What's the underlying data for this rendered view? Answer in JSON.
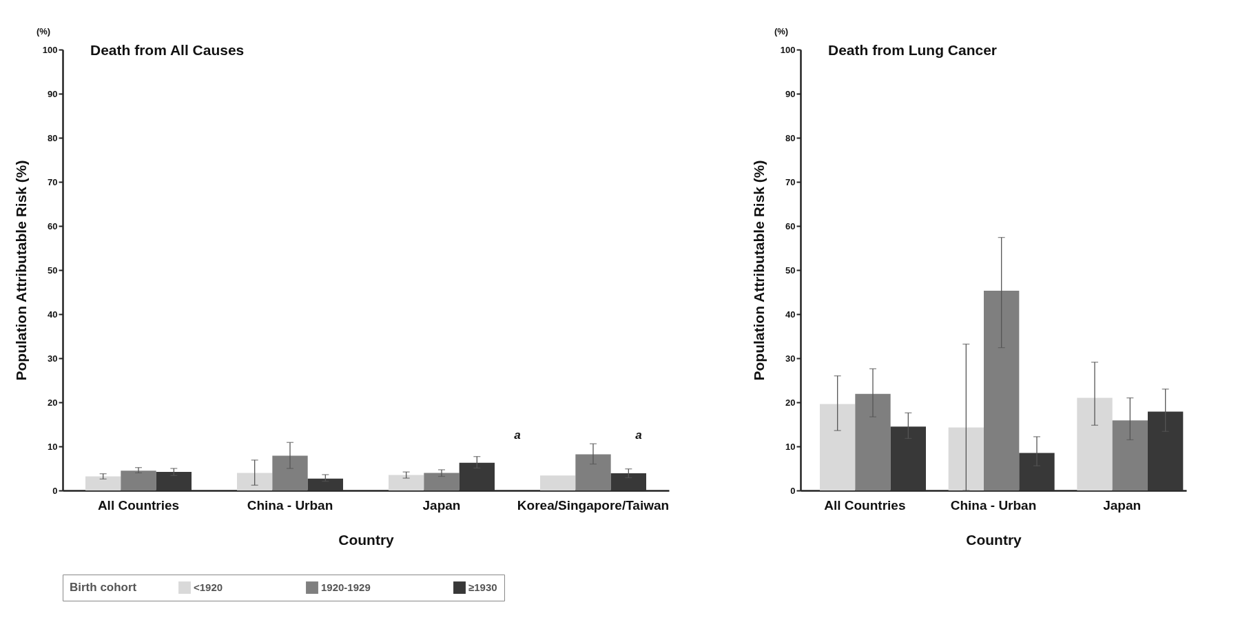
{
  "chart_data": [
    {
      "type": "bar",
      "title": "Death from All Causes",
      "xlabel": "Country",
      "ylabel": "Population Attributable Risk (%)",
      "categories": [
        "All Countries",
        "China - Urban",
        "Japan",
        "Korea/Singapore/Taiwan"
      ],
      "series": [
        {
          "name": "<1920",
          "color": "#d9d9d9",
          "values": [
            3.2,
            4.0,
            3.5,
            3.4
          ],
          "errors": [
            [
              2.6,
              3.8
            ],
            [
              1.2,
              6.9
            ],
            [
              2.8,
              4.2
            ],
            null
          ]
        },
        {
          "name": "1920-1929",
          "color": "#7f7f7f",
          "values": [
            4.5,
            7.9,
            4.0,
            8.2
          ],
          "errors": [
            [
              4.0,
              5.2
            ],
            [
              5.0,
              10.9
            ],
            [
              3.2,
              4.7
            ],
            [
              6.0,
              10.6
            ]
          ]
        },
        {
          "name": "≥1930",
          "color": "#383838",
          "values": [
            4.2,
            2.7,
            6.3,
            3.9
          ],
          "errors": [
            [
              3.4,
              5.0
            ],
            [
              2.1,
              3.6
            ],
            [
              5.1,
              7.7
            ],
            [
              2.9,
              4.9
            ]
          ]
        }
      ],
      "ylim": [
        0,
        100
      ],
      "yticks": [
        0,
        10,
        20,
        30,
        40,
        50,
        60,
        70,
        80,
        90,
        100
      ],
      "legend": "bottom",
      "legend_title": "Birth cohort",
      "annotations": [
        "(%)",
        "a",
        "a"
      ]
    },
    {
      "type": "bar",
      "title": "Death from Lung Cancer",
      "xlabel": "Country",
      "ylabel": "Population Attributable Risk (%)",
      "categories": [
        "All Countries",
        "China - Urban",
        "Japan"
      ],
      "series": [
        {
          "name": "<1920",
          "color": "#d9d9d9",
          "values": [
            19.6,
            14.3,
            21.0
          ],
          "errors": [
            [
              13.6,
              26.0
            ],
            [
              0,
              33.2
            ],
            [
              14.8,
              29.1
            ]
          ]
        },
        {
          "name": "1920-1929",
          "color": "#7f7f7f",
          "values": [
            21.9,
            45.3,
            15.9
          ],
          "errors": [
            [
              16.7,
              27.6
            ],
            [
              32.4,
              57.4
            ],
            [
              11.5,
              21.0
            ]
          ]
        },
        {
          "name": "≥1930",
          "color": "#383838",
          "values": [
            14.5,
            8.5,
            17.9
          ],
          "errors": [
            [
              11.8,
              17.6
            ],
            [
              5.6,
              12.2
            ],
            [
              13.4,
              23.0
            ]
          ]
        }
      ],
      "ylim": [
        0,
        100
      ],
      "yticks": [
        0,
        10,
        20,
        30,
        40,
        50,
        60,
        70,
        80,
        90,
        100
      ],
      "annotations": [
        "(%)"
      ]
    }
  ]
}
